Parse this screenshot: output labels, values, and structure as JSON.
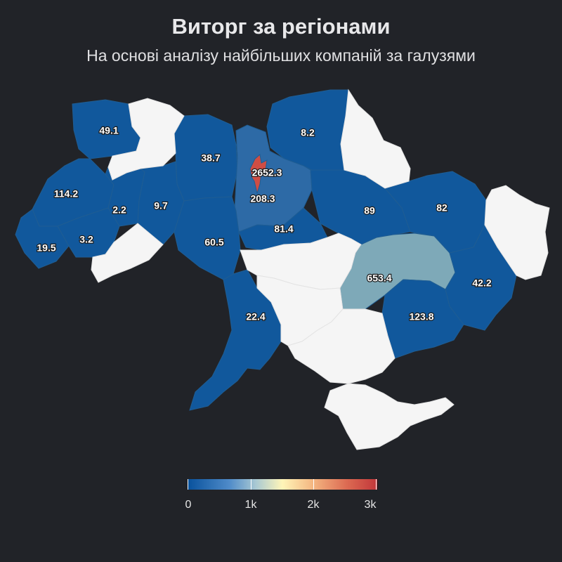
{
  "header": {
    "title": "Виторг за регіонами",
    "subtitle": "На основі аналізу найбільших компаній за галузями"
  },
  "colors": {
    "background": "#212328",
    "low": "#11589c",
    "mid_blue": "#2d6aa6",
    "teal": "#7ea9b8",
    "high": "#cf4d44",
    "no_data": "#f5f5f5"
  },
  "chart_data": {
    "type": "choropleth",
    "title": "Виторг за регіонами",
    "subtitle": "На основі аналізу найбільших компаній за галузями",
    "scale": {
      "min": 0,
      "max": 3000,
      "ticks": [
        "0",
        "1k",
        "2k",
        "3k"
      ]
    },
    "regions": [
      {
        "id": "volyn",
        "value": 49.1,
        "label": "49.1"
      },
      {
        "id": "rivne",
        "value": 38.7,
        "label": "38.7"
      },
      {
        "id": "chernihiv",
        "value": 8.2,
        "label": "8.2"
      },
      {
        "id": "kyiv-city",
        "value": 2652.3,
        "label": "2652.3"
      },
      {
        "id": "kyiv-oblast",
        "value": 208.3,
        "label": "208.3"
      },
      {
        "id": "lviv",
        "value": 114.2,
        "label": "114.2"
      },
      {
        "id": "ternopil",
        "value": 2.2,
        "label": "2.2"
      },
      {
        "id": "khmelnytskyi",
        "value": 9.7,
        "label": "9.7"
      },
      {
        "id": "poltava",
        "value": 89,
        "label": "89"
      },
      {
        "id": "kharkiv",
        "value": 82,
        "label": "82"
      },
      {
        "id": "cherkasy",
        "value": 81.4,
        "label": "81.4"
      },
      {
        "id": "vinnytsia",
        "value": 60.5,
        "label": "60.5"
      },
      {
        "id": "zakarpattia",
        "value": 19.5,
        "label": "19.5"
      },
      {
        "id": "ivano-frankivsk",
        "value": 3.2,
        "label": "3.2"
      },
      {
        "id": "dnipropetrovsk",
        "value": 653.4,
        "label": "653.4"
      },
      {
        "id": "donetsk",
        "value": 42.2,
        "label": "42.2"
      },
      {
        "id": "zaporizhzhia",
        "value": 123.8,
        "label": "123.8"
      },
      {
        "id": "odesa",
        "value": 22.4,
        "label": "22.4"
      }
    ],
    "no_data_regions": [
      "zhytomyr-north-gap",
      "sumy",
      "luhansk",
      "kirovohrad",
      "mykolaiv",
      "kherson",
      "crimea",
      "chernivtsi"
    ]
  }
}
